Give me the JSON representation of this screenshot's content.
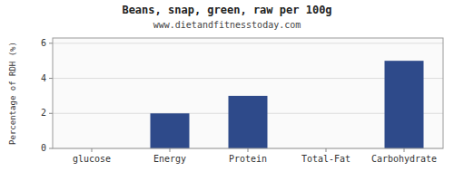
{
  "chart_data": {
    "type": "bar",
    "title": "Beans, snap, green, raw per 100g",
    "subtitle": "www.dietandfitnesstoday.com",
    "categories": [
      "glucose",
      "Energy",
      "Protein",
      "Total-Fat",
      "Carbohydrate"
    ],
    "values": [
      0,
      2.0,
      3.0,
      0,
      5.0
    ],
    "color": "#2e4a8a",
    "ylabel": "Percentage of RDH (%)",
    "ylim": [
      0,
      6.3
    ],
    "yticks": [
      0,
      2,
      4,
      6
    ],
    "grid": true
  }
}
